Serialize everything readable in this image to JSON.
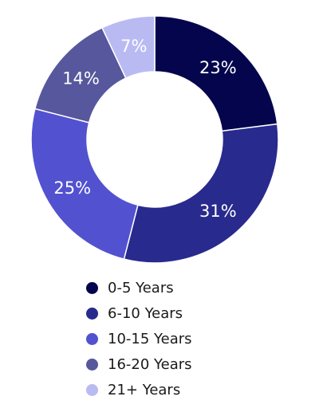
{
  "chart_data": {
    "type": "pie",
    "categories": [
      "0-5 Years",
      "6-10 Years",
      "10-15 Years",
      "16-20 Years",
      "21+ Years"
    ],
    "values": [
      23,
      31,
      25,
      14,
      7
    ],
    "labels": [
      "23%",
      "31%",
      "25%",
      "14%",
      "7%"
    ],
    "colors": [
      "#05054e",
      "#282a8d",
      "#5252d0",
      "#57579d",
      "#babaf3"
    ],
    "label_colors": [
      "#ffffff",
      "#ffffff",
      "#ffffff",
      "#ffffff",
      "#1f1f3a"
    ],
    "legend_position": "bottom",
    "style": "donut"
  }
}
